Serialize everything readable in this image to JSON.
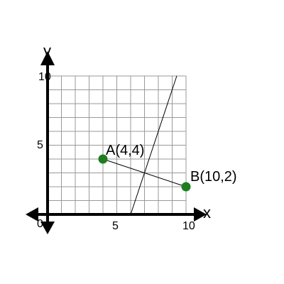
{
  "chart_data": {
    "type": "scatter",
    "xlabel": "x",
    "ylabel": "y",
    "xlim": [
      0,
      10
    ],
    "ylim": [
      0,
      10
    ],
    "grid": true,
    "x_ticks": [
      "5",
      "10"
    ],
    "y_ticks": [
      "5",
      "10"
    ],
    "origin_label": "0",
    "points": [
      {
        "label": "A(4,4)",
        "x": 4,
        "y": 4
      },
      {
        "label": "B(10,2)",
        "x": 10,
        "y": 2
      }
    ],
    "segment_AB": {
      "from": [
        4,
        4
      ],
      "to": [
        10,
        2
      ]
    },
    "line": {
      "from": [
        6,
        0
      ],
      "to": [
        9.33,
        10
      ]
    },
    "colors": {
      "points": "#1e7d1e",
      "grid": "#999999",
      "axes": "#000000"
    }
  }
}
